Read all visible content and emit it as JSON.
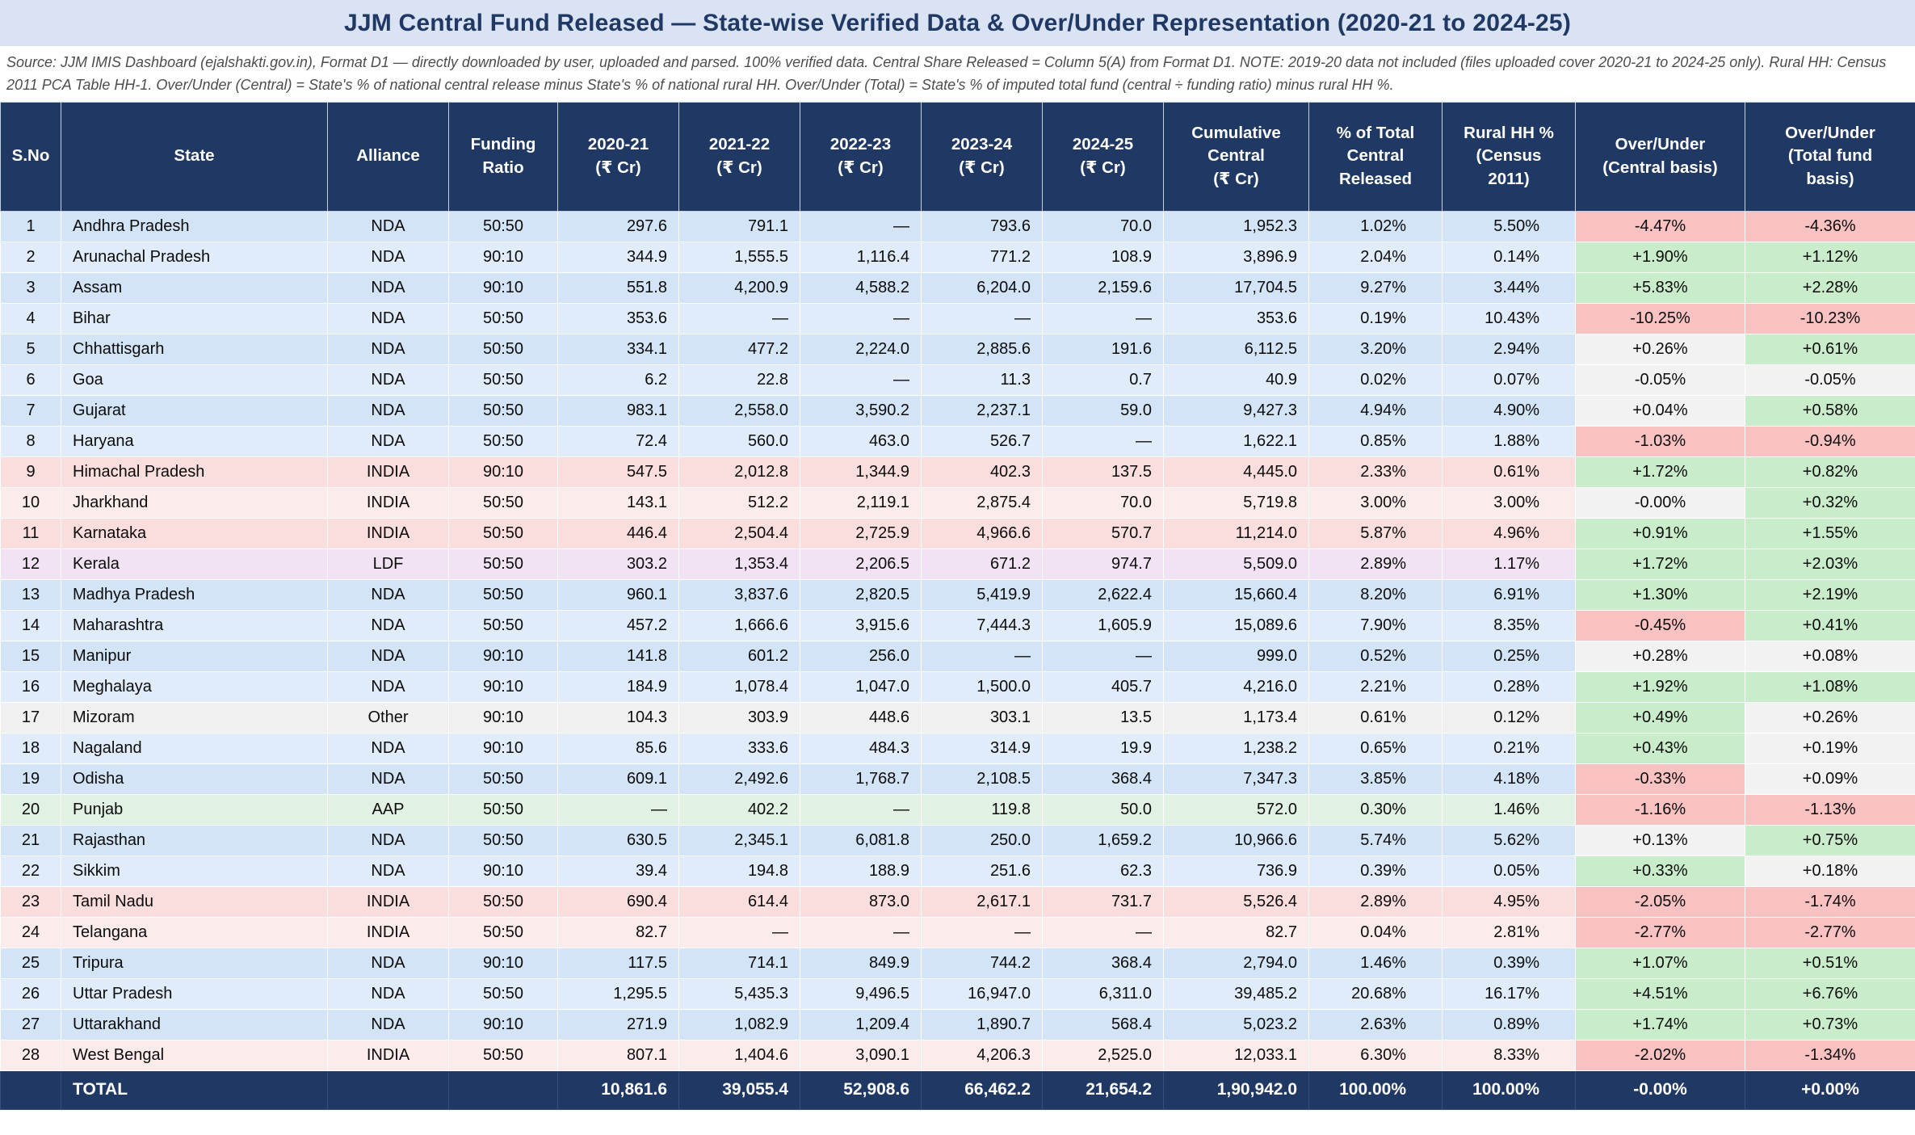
{
  "page": {
    "title": "JJM Central Fund Released — State-wise Verified Data & Over/Under Representation (2020-21 to 2024-25)",
    "source_note": "Source: JJM IMIS Dashboard (ejalshakti.gov.in), Format D1 — directly downloaded by user, uploaded and parsed. 100% verified data. Central Share Released = Column 5(A) from Format D1. NOTE: 2019-20 data not included (files uploaded cover 2020-21 to 2024-25 only). Rural HH: Census 2011 PCA Table HH-1. Over/Under (Central) = State's % of national central release minus State's % of national rural HH. Over/Under (Total) = State's % of imputed total fund (central ÷ funding ratio) minus rural HH %."
  },
  "colors": {
    "navy": "#1f3864",
    "title_band": "#dae3f3",
    "over_green": "#c9ecca",
    "over_red": "#f9c2c2",
    "over_neutral": "#f2f2f2",
    "alliance_row_colors": {
      "NDA": [
        "#d2e4f6",
        "#e0ecfa"
      ],
      "INDIA": [
        "#fadddd",
        "#fcebeb"
      ],
      "LDF": [
        "#f1e2f4",
        "#f1e2f4"
      ],
      "AAP": [
        "#e1f1e3",
        "#e1f1e3"
      ],
      "Other": [
        "#f0f0f0",
        "#f0f0f0"
      ]
    }
  },
  "chart_data": {
    "type": "table",
    "columns": [
      "S.No",
      "State",
      "Alliance",
      "Funding\nRatio",
      "2020-21\n(₹ Cr)",
      "2021-22\n(₹ Cr)",
      "2022-23\n(₹ Cr)",
      "2023-24\n(₹ Cr)",
      "2024-25\n(₹ Cr)",
      "Cumulative\nCentral\n(₹ Cr)",
      "% of Total\nCentral\nReleased",
      "Rural HH %\n(Census\n2011)",
      "Over/Under\n(Central basis)",
      "Over/Under\n(Total fund\nbasis)"
    ],
    "column_keys": [
      "sno",
      "state",
      "alliance",
      "funding-ratio",
      "fy-2020-21",
      "fy-2021-22",
      "fy-2022-23",
      "fy-2023-24",
      "fy-2024-25",
      "cumulative-central",
      "pct-total",
      "rural-hh",
      "ou-central",
      "ou-total"
    ],
    "rows": [
      {
        "sno": "1",
        "state": "Andhra Pradesh",
        "alliance": "NDA",
        "funding_ratio": "50:50",
        "fy": [
          "297.6",
          "791.1",
          "—",
          "793.6",
          "70.0"
        ],
        "cumulative": "1,952.3",
        "pct_total": "1.02%",
        "rural_hh": "5.50%",
        "ou_central": "-4.47%",
        "ou_central_tone": "red",
        "ou_total": "-4.36%",
        "ou_total_tone": "red"
      },
      {
        "sno": "2",
        "state": "Arunachal Pradesh",
        "alliance": "NDA",
        "funding_ratio": "90:10",
        "fy": [
          "344.9",
          "1,555.5",
          "1,116.4",
          "771.2",
          "108.9"
        ],
        "cumulative": "3,896.9",
        "pct_total": "2.04%",
        "rural_hh": "0.14%",
        "ou_central": "+1.90%",
        "ou_central_tone": "green",
        "ou_total": "+1.12%",
        "ou_total_tone": "green"
      },
      {
        "sno": "3",
        "state": "Assam",
        "alliance": "NDA",
        "funding_ratio": "90:10",
        "fy": [
          "551.8",
          "4,200.9",
          "4,588.2",
          "6,204.0",
          "2,159.6"
        ],
        "cumulative": "17,704.5",
        "pct_total": "9.27%",
        "rural_hh": "3.44%",
        "ou_central": "+5.83%",
        "ou_central_tone": "green",
        "ou_total": "+2.28%",
        "ou_total_tone": "green"
      },
      {
        "sno": "4",
        "state": "Bihar",
        "alliance": "NDA",
        "funding_ratio": "50:50",
        "fy": [
          "353.6",
          "—",
          "—",
          "—",
          "—"
        ],
        "cumulative": "353.6",
        "pct_total": "0.19%",
        "rural_hh": "10.43%",
        "ou_central": "-10.25%",
        "ou_central_tone": "red",
        "ou_total": "-10.23%",
        "ou_total_tone": "red"
      },
      {
        "sno": "5",
        "state": "Chhattisgarh",
        "alliance": "NDA",
        "funding_ratio": "50:50",
        "fy": [
          "334.1",
          "477.2",
          "2,224.0",
          "2,885.6",
          "191.6"
        ],
        "cumulative": "6,112.5",
        "pct_total": "3.20%",
        "rural_hh": "2.94%",
        "ou_central": "+0.26%",
        "ou_central_tone": "neutral",
        "ou_total": "+0.61%",
        "ou_total_tone": "green"
      },
      {
        "sno": "6",
        "state": "Goa",
        "alliance": "NDA",
        "funding_ratio": "50:50",
        "fy": [
          "6.2",
          "22.8",
          "—",
          "11.3",
          "0.7"
        ],
        "cumulative": "40.9",
        "pct_total": "0.02%",
        "rural_hh": "0.07%",
        "ou_central": "-0.05%",
        "ou_central_tone": "neutral",
        "ou_total": "-0.05%",
        "ou_total_tone": "neutral"
      },
      {
        "sno": "7",
        "state": "Gujarat",
        "alliance": "NDA",
        "funding_ratio": "50:50",
        "fy": [
          "983.1",
          "2,558.0",
          "3,590.2",
          "2,237.1",
          "59.0"
        ],
        "cumulative": "9,427.3",
        "pct_total": "4.94%",
        "rural_hh": "4.90%",
        "ou_central": "+0.04%",
        "ou_central_tone": "neutral",
        "ou_total": "+0.58%",
        "ou_total_tone": "green"
      },
      {
        "sno": "8",
        "state": "Haryana",
        "alliance": "NDA",
        "funding_ratio": "50:50",
        "fy": [
          "72.4",
          "560.0",
          "463.0",
          "526.7",
          "—"
        ],
        "cumulative": "1,622.1",
        "pct_total": "0.85%",
        "rural_hh": "1.88%",
        "ou_central": "-1.03%",
        "ou_central_tone": "red",
        "ou_total": "-0.94%",
        "ou_total_tone": "red"
      },
      {
        "sno": "9",
        "state": "Himachal Pradesh",
        "alliance": "INDIA",
        "funding_ratio": "90:10",
        "fy": [
          "547.5",
          "2,012.8",
          "1,344.9",
          "402.3",
          "137.5"
        ],
        "cumulative": "4,445.0",
        "pct_total": "2.33%",
        "rural_hh": "0.61%",
        "ou_central": "+1.72%",
        "ou_central_tone": "green",
        "ou_total": "+0.82%",
        "ou_total_tone": "green"
      },
      {
        "sno": "10",
        "state": "Jharkhand",
        "alliance": "INDIA",
        "funding_ratio": "50:50",
        "fy": [
          "143.1",
          "512.2",
          "2,119.1",
          "2,875.4",
          "70.0"
        ],
        "cumulative": "5,719.8",
        "pct_total": "3.00%",
        "rural_hh": "3.00%",
        "ou_central": "-0.00%",
        "ou_central_tone": "neutral",
        "ou_total": "+0.32%",
        "ou_total_tone": "green"
      },
      {
        "sno": "11",
        "state": "Karnataka",
        "alliance": "INDIA",
        "funding_ratio": "50:50",
        "fy": [
          "446.4",
          "2,504.4",
          "2,725.9",
          "4,966.6",
          "570.7"
        ],
        "cumulative": "11,214.0",
        "pct_total": "5.87%",
        "rural_hh": "4.96%",
        "ou_central": "+0.91%",
        "ou_central_tone": "green",
        "ou_total": "+1.55%",
        "ou_total_tone": "green"
      },
      {
        "sno": "12",
        "state": "Kerala",
        "alliance": "LDF",
        "funding_ratio": "50:50",
        "fy": [
          "303.2",
          "1,353.4",
          "2,206.5",
          "671.2",
          "974.7"
        ],
        "cumulative": "5,509.0",
        "pct_total": "2.89%",
        "rural_hh": "1.17%",
        "ou_central": "+1.72%",
        "ou_central_tone": "green",
        "ou_total": "+2.03%",
        "ou_total_tone": "green"
      },
      {
        "sno": "13",
        "state": "Madhya Pradesh",
        "alliance": "NDA",
        "funding_ratio": "50:50",
        "fy": [
          "960.1",
          "3,837.6",
          "2,820.5",
          "5,419.9",
          "2,622.4"
        ],
        "cumulative": "15,660.4",
        "pct_total": "8.20%",
        "rural_hh": "6.91%",
        "ou_central": "+1.30%",
        "ou_central_tone": "green",
        "ou_total": "+2.19%",
        "ou_total_tone": "green"
      },
      {
        "sno": "14",
        "state": "Maharashtra",
        "alliance": "NDA",
        "funding_ratio": "50:50",
        "fy": [
          "457.2",
          "1,666.6",
          "3,915.6",
          "7,444.3",
          "1,605.9"
        ],
        "cumulative": "15,089.6",
        "pct_total": "7.90%",
        "rural_hh": "8.35%",
        "ou_central": "-0.45%",
        "ou_central_tone": "red",
        "ou_total": "+0.41%",
        "ou_total_tone": "green"
      },
      {
        "sno": "15",
        "state": "Manipur",
        "alliance": "NDA",
        "funding_ratio": "90:10",
        "fy": [
          "141.8",
          "601.2",
          "256.0",
          "—",
          "—"
        ],
        "cumulative": "999.0",
        "pct_total": "0.52%",
        "rural_hh": "0.25%",
        "ou_central": "+0.28%",
        "ou_central_tone": "neutral",
        "ou_total": "+0.08%",
        "ou_total_tone": "neutral"
      },
      {
        "sno": "16",
        "state": "Meghalaya",
        "alliance": "NDA",
        "funding_ratio": "90:10",
        "fy": [
          "184.9",
          "1,078.4",
          "1,047.0",
          "1,500.0",
          "405.7"
        ],
        "cumulative": "4,216.0",
        "pct_total": "2.21%",
        "rural_hh": "0.28%",
        "ou_central": "+1.92%",
        "ou_central_tone": "green",
        "ou_total": "+1.08%",
        "ou_total_tone": "green"
      },
      {
        "sno": "17",
        "state": "Mizoram",
        "alliance": "Other",
        "funding_ratio": "90:10",
        "fy": [
          "104.3",
          "303.9",
          "448.6",
          "303.1",
          "13.5"
        ],
        "cumulative": "1,173.4",
        "pct_total": "0.61%",
        "rural_hh": "0.12%",
        "ou_central": "+0.49%",
        "ou_central_tone": "green",
        "ou_total": "+0.26%",
        "ou_total_tone": "neutral"
      },
      {
        "sno": "18",
        "state": "Nagaland",
        "alliance": "NDA",
        "funding_ratio": "90:10",
        "fy": [
          "85.6",
          "333.6",
          "484.3",
          "314.9",
          "19.9"
        ],
        "cumulative": "1,238.2",
        "pct_total": "0.65%",
        "rural_hh": "0.21%",
        "ou_central": "+0.43%",
        "ou_central_tone": "green",
        "ou_total": "+0.19%",
        "ou_total_tone": "neutral"
      },
      {
        "sno": "19",
        "state": "Odisha",
        "alliance": "NDA",
        "funding_ratio": "50:50",
        "fy": [
          "609.1",
          "2,492.6",
          "1,768.7",
          "2,108.5",
          "368.4"
        ],
        "cumulative": "7,347.3",
        "pct_total": "3.85%",
        "rural_hh": "4.18%",
        "ou_central": "-0.33%",
        "ou_central_tone": "red",
        "ou_total": "+0.09%",
        "ou_total_tone": "neutral"
      },
      {
        "sno": "20",
        "state": "Punjab",
        "alliance": "AAP",
        "funding_ratio": "50:50",
        "fy": [
          "—",
          "402.2",
          "—",
          "119.8",
          "50.0"
        ],
        "cumulative": "572.0",
        "pct_total": "0.30%",
        "rural_hh": "1.46%",
        "ou_central": "-1.16%",
        "ou_central_tone": "red",
        "ou_total": "-1.13%",
        "ou_total_tone": "red"
      },
      {
        "sno": "21",
        "state": "Rajasthan",
        "alliance": "NDA",
        "funding_ratio": "50:50",
        "fy": [
          "630.5",
          "2,345.1",
          "6,081.8",
          "250.0",
          "1,659.2"
        ],
        "cumulative": "10,966.6",
        "pct_total": "5.74%",
        "rural_hh": "5.62%",
        "ou_central": "+0.13%",
        "ou_central_tone": "neutral",
        "ou_total": "+0.75%",
        "ou_total_tone": "green"
      },
      {
        "sno": "22",
        "state": "Sikkim",
        "alliance": "NDA",
        "funding_ratio": "90:10",
        "fy": [
          "39.4",
          "194.8",
          "188.9",
          "251.6",
          "62.3"
        ],
        "cumulative": "736.9",
        "pct_total": "0.39%",
        "rural_hh": "0.05%",
        "ou_central": "+0.33%",
        "ou_central_tone": "green",
        "ou_total": "+0.18%",
        "ou_total_tone": "neutral"
      },
      {
        "sno": "23",
        "state": "Tamil Nadu",
        "alliance": "INDIA",
        "funding_ratio": "50:50",
        "fy": [
          "690.4",
          "614.4",
          "873.0",
          "2,617.1",
          "731.7"
        ],
        "cumulative": "5,526.4",
        "pct_total": "2.89%",
        "rural_hh": "4.95%",
        "ou_central": "-2.05%",
        "ou_central_tone": "red",
        "ou_total": "-1.74%",
        "ou_total_tone": "red"
      },
      {
        "sno": "24",
        "state": "Telangana",
        "alliance": "INDIA",
        "funding_ratio": "50:50",
        "fy": [
          "82.7",
          "—",
          "—",
          "—",
          "—"
        ],
        "cumulative": "82.7",
        "pct_total": "0.04%",
        "rural_hh": "2.81%",
        "ou_central": "-2.77%",
        "ou_central_tone": "red",
        "ou_total": "-2.77%",
        "ou_total_tone": "red"
      },
      {
        "sno": "25",
        "state": "Tripura",
        "alliance": "NDA",
        "funding_ratio": "90:10",
        "fy": [
          "117.5",
          "714.1",
          "849.9",
          "744.2",
          "368.4"
        ],
        "cumulative": "2,794.0",
        "pct_total": "1.46%",
        "rural_hh": "0.39%",
        "ou_central": "+1.07%",
        "ou_central_tone": "green",
        "ou_total": "+0.51%",
        "ou_total_tone": "green"
      },
      {
        "sno": "26",
        "state": "Uttar Pradesh",
        "alliance": "NDA",
        "funding_ratio": "50:50",
        "fy": [
          "1,295.5",
          "5,435.3",
          "9,496.5",
          "16,947.0",
          "6,311.0"
        ],
        "cumulative": "39,485.2",
        "pct_total": "20.68%",
        "rural_hh": "16.17%",
        "ou_central": "+4.51%",
        "ou_central_tone": "green",
        "ou_total": "+6.76%",
        "ou_total_tone": "green"
      },
      {
        "sno": "27",
        "state": "Uttarakhand",
        "alliance": "NDA",
        "funding_ratio": "90:10",
        "fy": [
          "271.9",
          "1,082.9",
          "1,209.4",
          "1,890.7",
          "568.4"
        ],
        "cumulative": "5,023.2",
        "pct_total": "2.63%",
        "rural_hh": "0.89%",
        "ou_central": "+1.74%",
        "ou_central_tone": "green",
        "ou_total": "+0.73%",
        "ou_total_tone": "green"
      },
      {
        "sno": "28",
        "state": "West Bengal",
        "alliance": "INDIA",
        "funding_ratio": "50:50",
        "fy": [
          "807.1",
          "1,404.6",
          "3,090.1",
          "4,206.3",
          "2,525.0"
        ],
        "cumulative": "12,033.1",
        "pct_total": "6.30%",
        "rural_hh": "8.33%",
        "ou_central": "-2.02%",
        "ou_central_tone": "red",
        "ou_total": "-1.34%",
        "ou_total_tone": "red"
      }
    ],
    "total_row": {
      "label": "TOTAL",
      "fy": [
        "10,861.6",
        "39,055.4",
        "52,908.6",
        "66,462.2",
        "21,654.2"
      ],
      "cumulative": "1,90,942.0",
      "pct_total": "100.00%",
      "rural_hh": "100.00%",
      "ou_central": "-0.00%",
      "ou_total": "+0.00%"
    }
  }
}
